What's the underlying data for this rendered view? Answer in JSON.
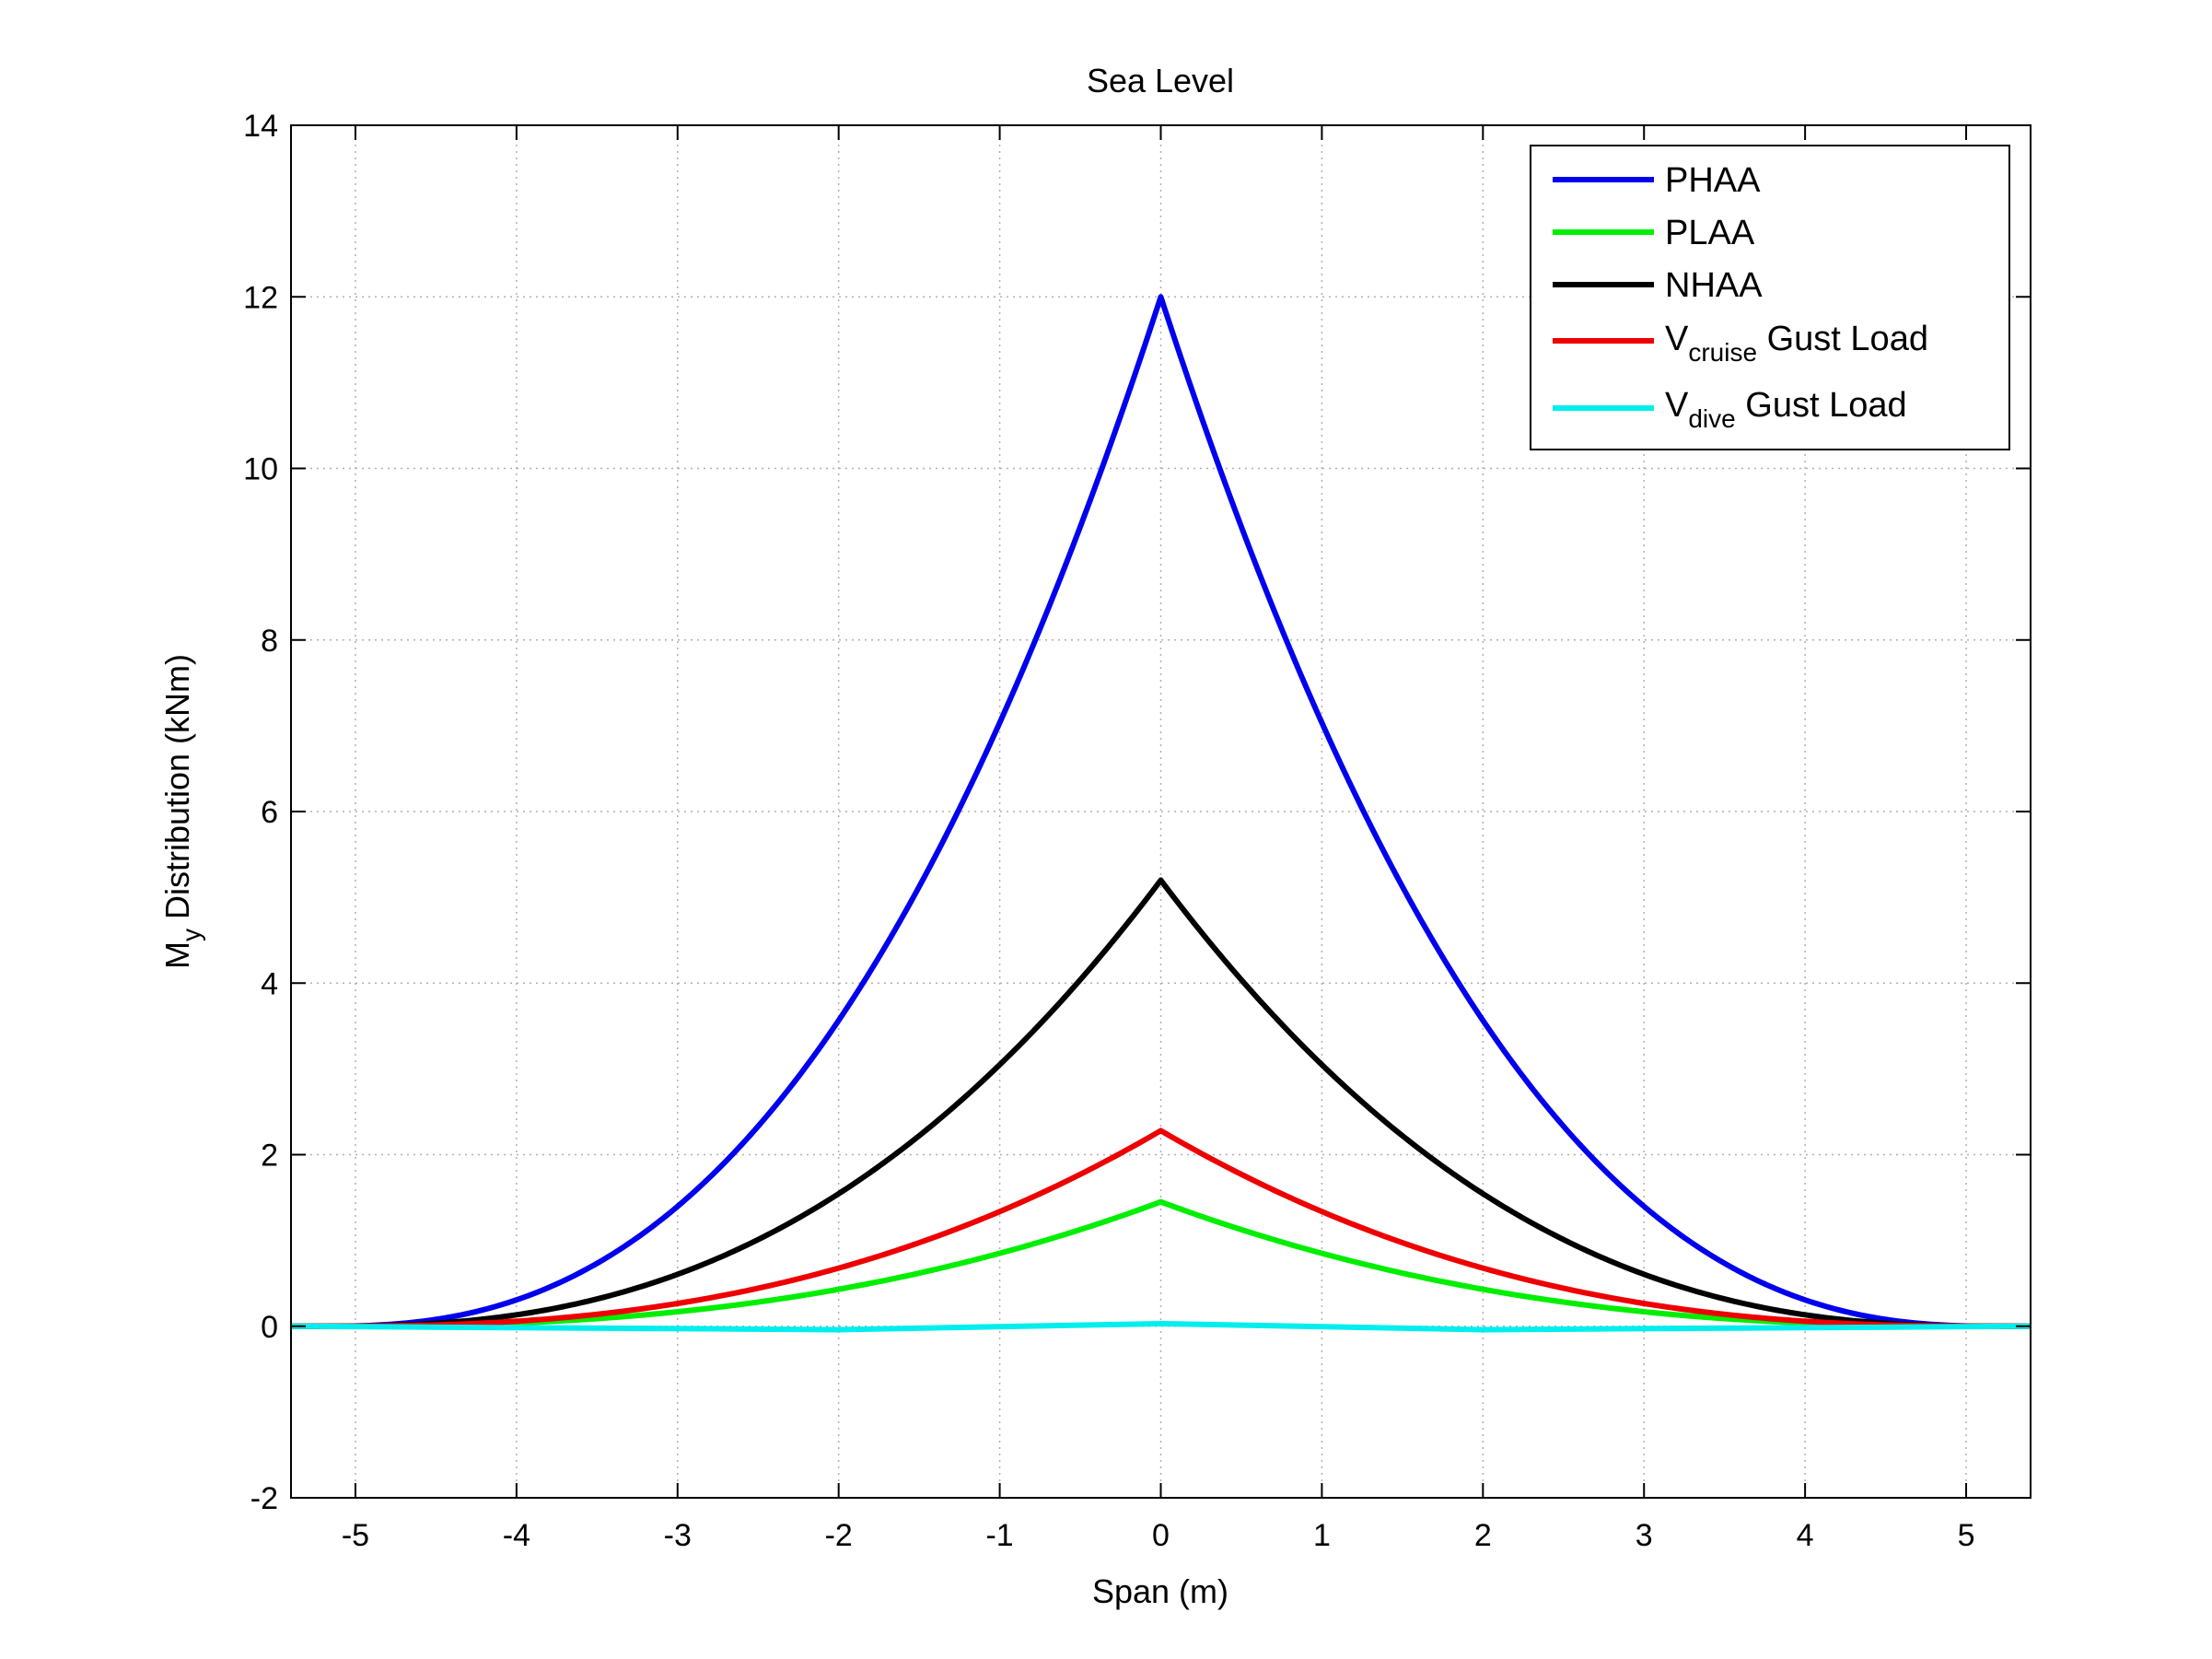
{
  "chart_data": {
    "type": "line",
    "title": "Sea Level",
    "xlabel": "Span (m)",
    "ylabel_main": "M",
    "ylabel_sub": "y",
    "ylabel_rest": " Distribution (kNm)",
    "xlim": [
      -5.4,
      5.4
    ],
    "ylim": [
      -2,
      14
    ],
    "xticks": [
      -5,
      -4,
      -3,
      -2,
      -1,
      0,
      1,
      2,
      3,
      4,
      5
    ],
    "yticks": [
      -2,
      0,
      2,
      4,
      6,
      8,
      10,
      12,
      14
    ],
    "grid": true,
    "legend_position": "top-right",
    "series": [
      {
        "name": "PHAA",
        "color": "#0000ee",
        "peak": 12.0,
        "half_span": 5.2,
        "exponent": 2.5,
        "x": [
          -5.2,
          -4,
          -3,
          -2,
          -1,
          0,
          1,
          2,
          3,
          4,
          5.2
        ],
        "y": [
          0,
          0.45,
          1.9,
          4.2,
          7.5,
          12.0,
          7.5,
          4.2,
          1.9,
          0.45,
          0
        ]
      },
      {
        "name": "PLAA",
        "color": "#00ee00",
        "peak": 1.45,
        "half_span": 5.2,
        "exponent": 2.5,
        "x": [
          -5.2,
          -4,
          -3,
          -2,
          -1,
          0,
          1,
          2,
          3,
          4,
          5.2
        ],
        "y": [
          0,
          0.05,
          0.2,
          0.45,
          0.85,
          1.45,
          0.85,
          0.45,
          0.2,
          0.05,
          0
        ]
      },
      {
        "name": "NHAA",
        "color": "#000000",
        "peak": 5.2,
        "half_span": 5.2,
        "exponent": 2.5,
        "x": [
          -5.2,
          -4,
          -3,
          -2,
          -1,
          0,
          1,
          2,
          3,
          4,
          5.2
        ],
        "y": [
          0,
          0.2,
          0.8,
          1.8,
          3.3,
          5.2,
          3.3,
          1.8,
          0.8,
          0.2,
          0
        ]
      },
      {
        "name_main": "V",
        "name_sub": "cruise",
        "name_rest": " Gust Load",
        "color": "#ee0000",
        "peak": 2.28,
        "half_span": 5.2,
        "exponent": 2.5,
        "x": [
          -5.2,
          -4,
          -3,
          -2,
          -1,
          0,
          1,
          2,
          3,
          4,
          5.2
        ],
        "y": [
          0,
          0.1,
          0.35,
          0.8,
          1.45,
          2.28,
          1.45,
          0.8,
          0.35,
          0.1,
          0
        ]
      },
      {
        "name_main": "V",
        "name_sub": "dive",
        "name_rest": " Gust Load",
        "color": "#00eeee",
        "x": [
          -5.4,
          -2,
          0,
          2,
          5.4
        ],
        "y": [
          0,
          -0.04,
          0.03,
          -0.04,
          0
        ]
      }
    ]
  }
}
